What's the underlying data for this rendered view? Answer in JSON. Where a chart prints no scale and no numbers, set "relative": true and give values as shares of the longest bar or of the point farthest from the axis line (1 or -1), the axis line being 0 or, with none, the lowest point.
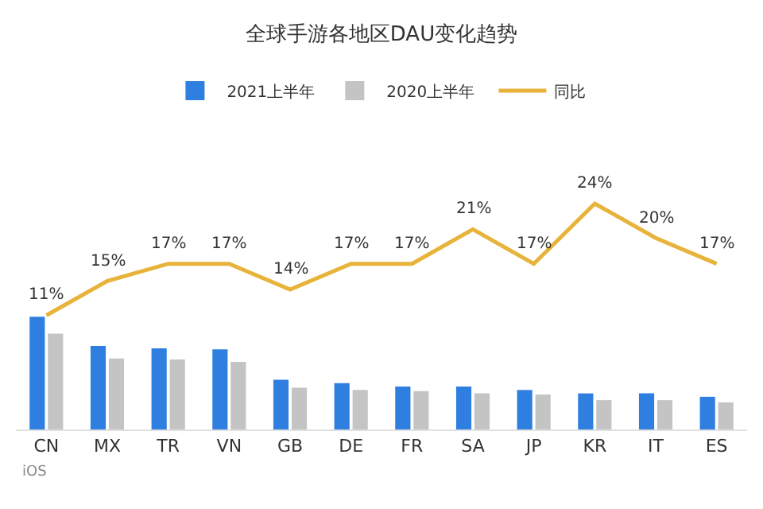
{
  "chart_data": [
    {
      "type": "bar",
      "relative": true,
      "legend": "top",
      "annotations": [
        "iOS"
      ],
      "categories": [
        "CN",
        "MX",
        "TR",
        "VN",
        "GB",
        "DE",
        "FR",
        "SA",
        "JP",
        "KR",
        "IT",
        "ES"
      ],
      "series": [
        {
          "name": "2021上半年",
          "color": "#2f7fe0",
          "values": [
            1,
            0.74,
            0.72,
            0.71,
            0.44,
            0.41,
            0.38,
            0.38,
            0.35,
            0.32,
            0.32,
            0.29
          ]
        },
        {
          "name": "2020上半年",
          "color": "#c4c4c4",
          "values": [
            0.85,
            0.63,
            0.62,
            0.6,
            0.37,
            0.35,
            0.34,
            0.32,
            0.31,
            0.26,
            0.26,
            0.24
          ]
        }
      ]
    },
    {
      "type": "line",
      "title": "全球手游各地区DAU变化趋势",
      "legend": "top",
      "marker": "none",
      "categories": [
        null,
        null,
        null,
        null,
        null,
        null,
        null,
        null,
        null,
        null,
        null,
        null
      ],
      "series": [
        {
          "name": "同比",
          "color": "#e8b33a",
          "values": [
            11,
            15,
            17,
            17,
            14,
            17,
            17,
            21,
            17,
            24,
            20,
            17
          ],
          "value_labels": [
            "11%",
            "15%",
            "17%",
            "17%",
            "14%",
            "17%",
            "17%",
            "21%",
            "17%",
            "24%",
            "20%",
            "17%"
          ]
        }
      ]
    }
  ]
}
